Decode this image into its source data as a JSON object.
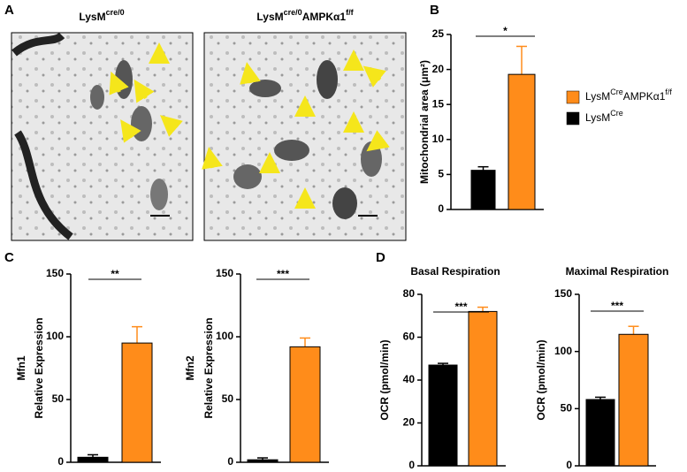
{
  "panel_labels": [
    "A",
    "B",
    "C",
    "D"
  ],
  "images": [
    {
      "label_parts": [
        {
          "text": "LysM"
        },
        {
          "text": "cre/0",
          "sup": true
        }
      ]
    },
    {
      "label_parts": [
        {
          "text": "LysM"
        },
        {
          "text": "cre/0",
          "sup": true
        },
        {
          "text": "AMPKα1"
        },
        {
          "text": "f/f",
          "sup": true
        }
      ]
    }
  ],
  "chart_data": [
    {
      "type": "bar",
      "y_label": [
        "Mitochondrial area  (μm²)"
      ],
      "ylim": [
        0,
        25
      ],
      "yticks": [
        0,
        5,
        10,
        15,
        20,
        25
      ],
      "significance": "*",
      "series": [
        {
          "name_parts": [
            {
              "text": "LysM"
            },
            {
              "text": "Cre",
              "sup": true
            }
          ],
          "color": "#000000",
          "values": [
            5.6
          ],
          "errors": [
            0.5
          ]
        },
        {
          "name_parts": [
            {
              "text": "LysM"
            },
            {
              "text": "Cre",
              "sup": true
            },
            {
              "text": "AMPKα1"
            },
            {
              "text": "f/f",
              "sup": true
            }
          ],
          "color": "#ff8c1a",
          "values": [
            19.3
          ],
          "errors": [
            4
          ]
        }
      ]
    },
    {
      "type": "bar",
      "y_label": [
        "Mfn1",
        "Relative Expression"
      ],
      "ylim": [
        0,
        150
      ],
      "yticks": [
        0,
        50,
        100,
        150
      ],
      "significance": "**",
      "series": [
        {
          "color": "#000000",
          "values": [
            4
          ],
          "errors": [
            2
          ]
        },
        {
          "color": "#ff8c1a",
          "values": [
            95
          ],
          "errors": [
            13
          ]
        }
      ]
    },
    {
      "type": "bar",
      "y_label": [
        "Mfn2",
        "Relative Expression"
      ],
      "ylim": [
        0,
        150
      ],
      "yticks": [
        0,
        50,
        100,
        150
      ],
      "significance": "***",
      "series": [
        {
          "color": "#000000",
          "values": [
            2
          ],
          "errors": [
            1.5
          ]
        },
        {
          "color": "#ff8c1a",
          "values": [
            92
          ],
          "errors": [
            7
          ]
        }
      ]
    },
    {
      "type": "bar",
      "title": "Basal Respiration",
      "y_label": [
        "OCR (pmol/min)"
      ],
      "ylim": [
        0,
        80
      ],
      "yticks": [
        0,
        20,
        40,
        60,
        80
      ],
      "significance": "***",
      "series": [
        {
          "color": "#000000",
          "values": [
            47
          ],
          "errors": [
            0.8
          ]
        },
        {
          "color": "#ff8c1a",
          "values": [
            72
          ],
          "errors": [
            2
          ]
        }
      ]
    },
    {
      "type": "bar",
      "title": "Maximal Respiration",
      "y_label": [
        "OCR (pmol/min)"
      ],
      "ylim": [
        0,
        150
      ],
      "yticks": [
        0,
        50,
        100,
        150
      ],
      "significance": "***",
      "series": [
        {
          "color": "#000000",
          "values": [
            58
          ],
          "errors": [
            2
          ]
        },
        {
          "color": "#ff8c1a",
          "values": [
            115
          ],
          "errors": [
            7
          ]
        }
      ]
    }
  ]
}
